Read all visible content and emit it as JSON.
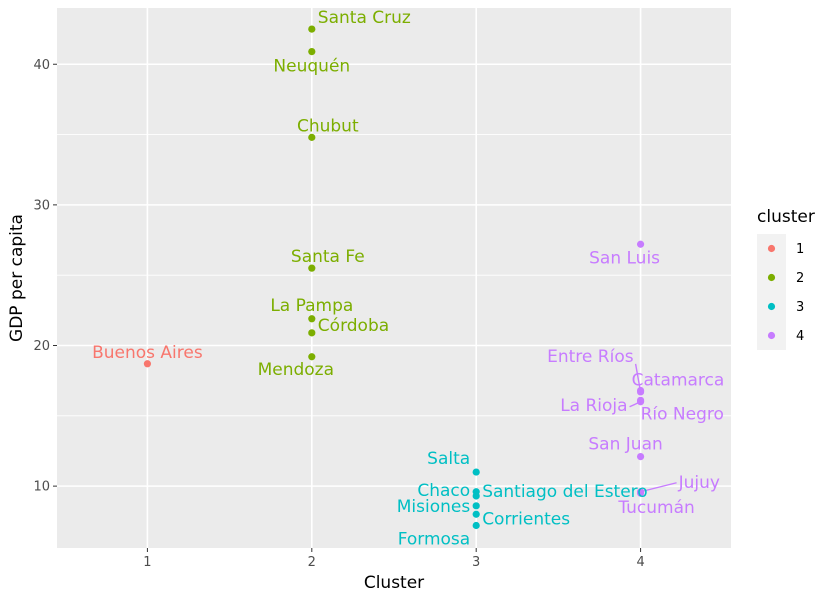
{
  "chart_data": {
    "type": "scatter",
    "xlabel": "Cluster",
    "ylabel": "GDP per capita",
    "xlim": [
      0.45,
      4.55
    ],
    "ylim": [
      5.6,
      44.0
    ],
    "x_ticks": [
      1,
      2,
      3,
      4
    ],
    "y_ticks": [
      10,
      20,
      30,
      40
    ],
    "grid": true,
    "legend": {
      "title": "cluster",
      "position": "right",
      "entries": [
        {
          "label": "1",
          "color": "#F8766D"
        },
        {
          "label": "2",
          "color": "#7CAE00"
        },
        {
          "label": "3",
          "color": "#00BFC4"
        },
        {
          "label": "4",
          "color": "#C77CFF"
        }
      ]
    },
    "points": [
      {
        "name": "Buenos Aires",
        "x": 1,
        "y": 18.7,
        "cluster": "1"
      },
      {
        "name": "Santa Cruz",
        "x": 2,
        "y": 42.5,
        "cluster": "2"
      },
      {
        "name": "Neuquén",
        "x": 2,
        "y": 40.9,
        "cluster": "2"
      },
      {
        "name": "Chubut",
        "x": 2,
        "y": 34.8,
        "cluster": "2"
      },
      {
        "name": "Santa Fe",
        "x": 2,
        "y": 25.5,
        "cluster": "2"
      },
      {
        "name": "La Pampa",
        "x": 2,
        "y": 21.9,
        "cluster": "2"
      },
      {
        "name": "Córdoba",
        "x": 2,
        "y": 20.9,
        "cluster": "2"
      },
      {
        "name": "Mendoza",
        "x": 2,
        "y": 19.2,
        "cluster": "2"
      },
      {
        "name": "Salta",
        "x": 3,
        "y": 11.0,
        "cluster": "3"
      },
      {
        "name": "Santiago del Estero",
        "x": 3,
        "y": 9.6,
        "cluster": "3"
      },
      {
        "name": "Chaco",
        "x": 3,
        "y": 9.3,
        "cluster": "3"
      },
      {
        "name": "Misiones",
        "x": 3,
        "y": 8.6,
        "cluster": "3"
      },
      {
        "name": "Corrientes",
        "x": 3,
        "y": 8.0,
        "cluster": "3"
      },
      {
        "name": "Formosa",
        "x": 3,
        "y": 7.2,
        "cluster": "3"
      },
      {
        "name": "San Luis",
        "x": 4,
        "y": 27.2,
        "cluster": "4"
      },
      {
        "name": "Entre Ríos",
        "x": 4,
        "y": 16.7,
        "cluster": "4"
      },
      {
        "name": "Catamarca",
        "x": 4,
        "y": 16.8,
        "cluster": "4"
      },
      {
        "name": "La Rioja",
        "x": 4,
        "y": 16.0,
        "cluster": "4"
      },
      {
        "name": "Río Negro",
        "x": 4,
        "y": 16.1,
        "cluster": "4"
      },
      {
        "name": "San Juan",
        "x": 4,
        "y": 12.1,
        "cluster": "4"
      },
      {
        "name": "Jujuy",
        "x": 4,
        "y": 9.6,
        "cluster": "4"
      },
      {
        "name": "Tucumán",
        "x": 4,
        "y": 9.5,
        "cluster": "4"
      }
    ]
  }
}
